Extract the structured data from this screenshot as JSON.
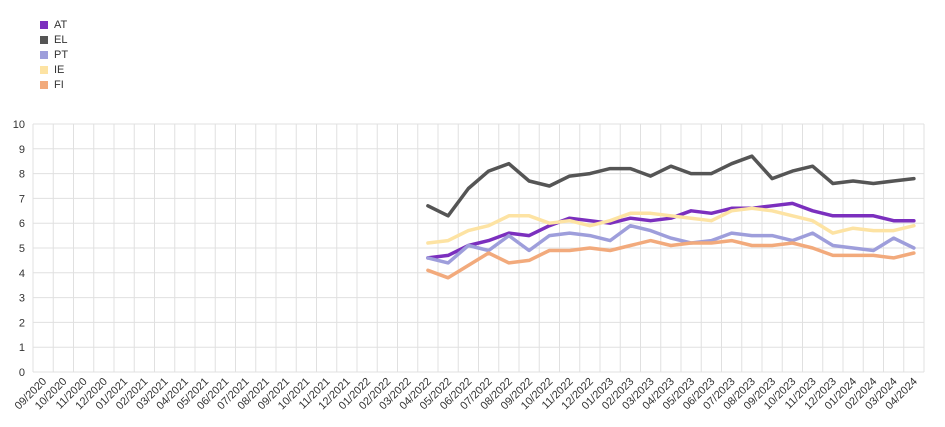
{
  "chart_data": {
    "type": "line",
    "title": "",
    "xlabel": "",
    "ylabel": "",
    "ylim": [
      0,
      10
    ],
    "yticks": [
      0,
      1,
      2,
      3,
      4,
      5,
      6,
      7,
      8,
      9,
      10
    ],
    "grid": true,
    "legend_position": "top-left",
    "categories": [
      "09/2020",
      "10/2020",
      "11/2020",
      "12/2020",
      "01/2021",
      "02/2021",
      "03/2021",
      "04/2021",
      "05/2021",
      "06/2021",
      "07/2021",
      "08/2021",
      "09/2021",
      "10/2021",
      "11/2021",
      "12/2021",
      "01/2022",
      "02/2022",
      "03/2022",
      "04/2022",
      "05/2022",
      "06/2022",
      "07/2022",
      "08/2022",
      "09/2022",
      "10/2022",
      "11/2022",
      "12/2022",
      "01/2023",
      "02/2023",
      "03/2023",
      "04/2023",
      "05/2023",
      "06/2023",
      "07/2023",
      "08/2023",
      "09/2023",
      "10/2023",
      "11/2023",
      "12/2023",
      "01/2024",
      "02/2024",
      "03/2024",
      "04/2024"
    ],
    "series": [
      {
        "name": "AT",
        "color": "#7b2fbe",
        "values": [
          null,
          null,
          null,
          null,
          null,
          null,
          null,
          null,
          null,
          null,
          null,
          null,
          null,
          null,
          null,
          null,
          null,
          null,
          null,
          4.6,
          4.7,
          5.1,
          5.3,
          5.6,
          5.5,
          5.9,
          6.2,
          6.1,
          6.0,
          6.2,
          6.1,
          6.2,
          6.5,
          6.4,
          6.6,
          6.6,
          6.7,
          6.8,
          6.5,
          6.3,
          6.3,
          6.3,
          6.1,
          6.1
        ]
      },
      {
        "name": "EL",
        "color": "#555555",
        "values": [
          null,
          null,
          null,
          null,
          null,
          null,
          null,
          null,
          null,
          null,
          null,
          null,
          null,
          null,
          null,
          null,
          null,
          null,
          null,
          6.7,
          6.3,
          7.4,
          8.1,
          8.4,
          7.7,
          7.5,
          7.9,
          8.0,
          8.2,
          8.2,
          7.9,
          8.3,
          8.0,
          8.0,
          8.4,
          8.7,
          7.8,
          8.1,
          8.3,
          7.6,
          7.7,
          7.6,
          7.7,
          7.8
        ]
      },
      {
        "name": "PT",
        "color": "#9e9edb",
        "values": [
          null,
          null,
          null,
          null,
          null,
          null,
          null,
          null,
          null,
          null,
          null,
          null,
          null,
          null,
          null,
          null,
          null,
          null,
          null,
          4.6,
          4.4,
          5.1,
          4.9,
          5.5,
          4.9,
          5.5,
          5.6,
          5.5,
          5.3,
          5.9,
          5.7,
          5.4,
          5.2,
          5.3,
          5.6,
          5.5,
          5.5,
          5.3,
          5.6,
          5.1,
          5.0,
          4.9,
          5.4,
          5.0
        ]
      },
      {
        "name": "IE",
        "color": "#fde3a3",
        "values": [
          null,
          null,
          null,
          null,
          null,
          null,
          null,
          null,
          null,
          null,
          null,
          null,
          null,
          null,
          null,
          null,
          null,
          null,
          null,
          5.2,
          5.3,
          5.7,
          5.9,
          6.3,
          6.3,
          6.0,
          6.1,
          5.9,
          6.1,
          6.4,
          6.4,
          6.3,
          6.2,
          6.1,
          6.5,
          6.6,
          6.5,
          6.3,
          6.1,
          5.6,
          5.8,
          5.7,
          5.7,
          5.9
        ]
      },
      {
        "name": "FI",
        "color": "#f2aa7c",
        "values": [
          null,
          null,
          null,
          null,
          null,
          null,
          null,
          null,
          null,
          null,
          null,
          null,
          null,
          null,
          null,
          null,
          null,
          null,
          null,
          4.1,
          3.8,
          4.3,
          4.8,
          4.4,
          4.5,
          4.9,
          4.9,
          5.0,
          4.9,
          5.1,
          5.3,
          5.1,
          5.2,
          5.2,
          5.3,
          5.1,
          5.1,
          5.2,
          5.0,
          4.7,
          4.7,
          4.7,
          4.6,
          4.8
        ]
      }
    ]
  }
}
